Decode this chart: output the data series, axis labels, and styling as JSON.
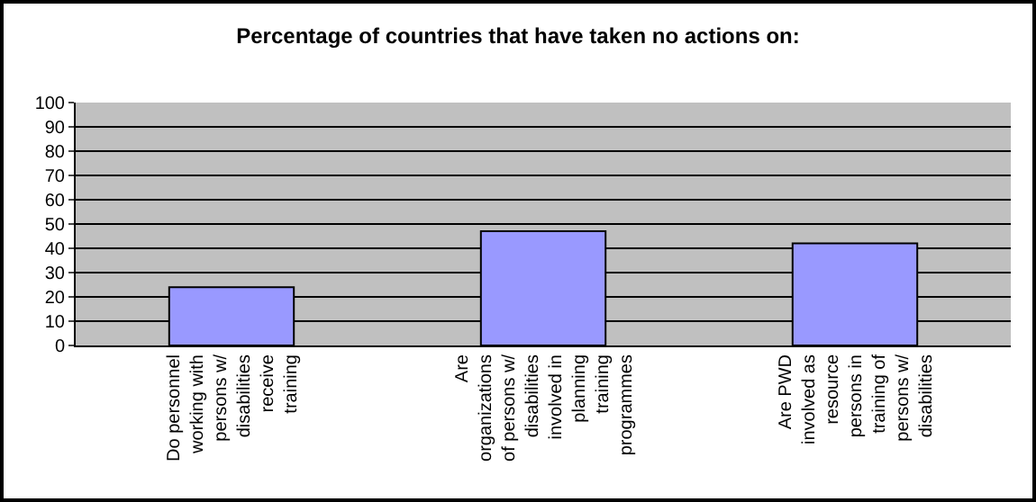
{
  "chart_data": {
    "type": "bar",
    "title": "Percentage of countries that have taken no actions on:",
    "categories": [
      "Do personnel working with persons w/ disabilities receive training",
      "Are organizations of persons w/ disabilities involved in planning training programmes",
      "Are PWD involved as resource persons in training of persons w/ disabilities"
    ],
    "values": [
      24,
      47,
      42
    ],
    "color": "#9999ff",
    "ylim": [
      0,
      100
    ],
    "yticks": [
      0,
      10,
      20,
      30,
      40,
      50,
      60,
      70,
      80,
      90,
      100
    ],
    "grid": "y"
  }
}
